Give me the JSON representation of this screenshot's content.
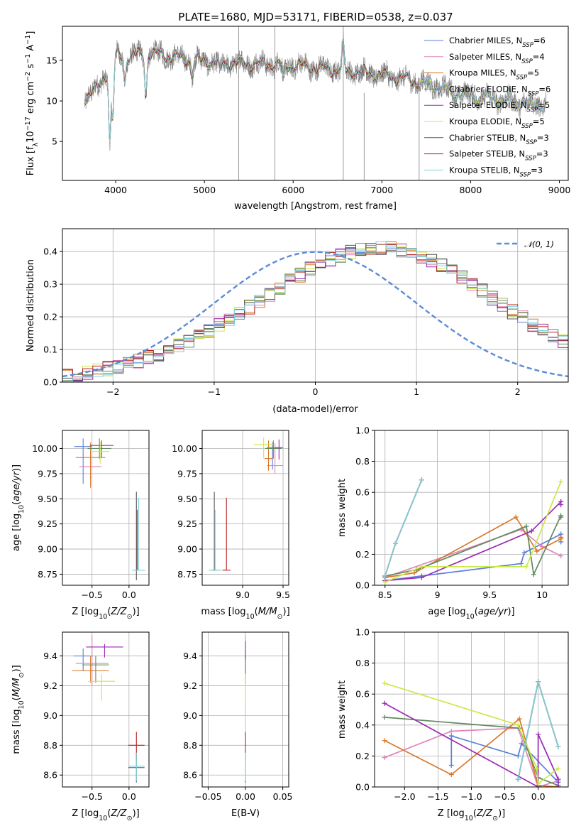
{
  "figure": {
    "title": "PLATE=1680, MJD=53171, FIBERID=0538, z=0.037"
  },
  "palette": {
    "chabrier_miles": "#5b7fd8",
    "salpeter_miles": "#e085b8",
    "kroupa_miles": "#d9792a",
    "chabrier_elodie": "#5f8a5f",
    "salpeter_elodie": "#9b2ab5",
    "kroupa_elodie": "#cbe84a",
    "chabrier_stelib": "#555555",
    "salpeter_stelib": "#b52020",
    "kroupa_stelib": "#7fd3dc",
    "data": "#808080",
    "normal": "#5b8bd6",
    "grid": "#b0b0b0"
  },
  "legend_spectrum": [
    "Chabrier MILES, N_SSP=6",
    "Salpeter MILES, N_SSP=4",
    "Kroupa MILES, N_SSP=5",
    "Chabrier ELODIE, N_SSP=6",
    "Salpeter ELODIE, N_SSP=5",
    "Kroupa ELODIE, N_SSP=5",
    "Chabrier STELIB, N_SSP=3",
    "Salpeter STELIB, N_SSP=3",
    "Kroupa STELIB, N_SSP=3"
  ],
  "legend_hist": "𝒩(0, 1)",
  "chart_data": [
    {
      "id": "spectrum",
      "type": "line",
      "xlabel": "wavelength [Angstrom, rest frame]",
      "ylabel": "Flux [f_λ 10^-17 erg cm^-2 s^-1 A^-1]",
      "xlim": [
        3400,
        9100
      ],
      "ylim": [
        0.2,
        19.2
      ],
      "xticks": [
        4000,
        5000,
        6000,
        7000,
        8000,
        9000
      ],
      "yticks": [
        5,
        10,
        15
      ],
      "data_range": [
        3650,
        8850
      ],
      "continuum": {
        "x": [
          3650,
          3800,
          3950,
          4000,
          4100,
          4250,
          4400,
          4600,
          4900,
          5200,
          5500,
          5800,
          6100,
          6400,
          6700,
          7000,
          7300,
          7600,
          7900,
          8200,
          8500,
          8850
        ],
        "y": [
          10.5,
          11.5,
          14.5,
          15.6,
          15.4,
          15.7,
          15.9,
          15.5,
          15.0,
          14.7,
          14.6,
          14.5,
          14.3,
          13.9,
          13.6,
          13.2,
          12.6,
          11.8,
          10.8,
          10.3,
          9.9,
          9.5
        ]
      },
      "model_ranges": [
        [
          3650,
          8850
        ],
        [
          3650,
          8850
        ],
        [
          3650,
          7420
        ],
        [
          3650,
          8850
        ],
        [
          3650,
          8850
        ],
        [
          3650,
          8850
        ],
        [
          3650,
          7420
        ],
        [
          3650,
          7420
        ],
        [
          3650,
          8850
        ]
      ]
    },
    {
      "id": "residual_histogram",
      "type": "histogram",
      "xlabel": "(data-model)/error",
      "ylabel": "Normed distribution",
      "xlim": [
        -2.5,
        2.5
      ],
      "ylim": [
        0,
        0.47
      ],
      "xticks": [
        -2,
        -1,
        0,
        1,
        2
      ],
      "yticks": [
        0.0,
        0.1,
        0.2,
        0.3,
        0.4
      ],
      "bin_width": 0.1,
      "bin_start": -2.5,
      "bins_reference": [
        0.017,
        0.023,
        0.028,
        0.034,
        0.041,
        0.048,
        0.056,
        0.065,
        0.075,
        0.086,
        0.099,
        0.112,
        0.126,
        0.141,
        0.157,
        0.174,
        0.192,
        0.211,
        0.23,
        0.25,
        0.27,
        0.29,
        0.309,
        0.328,
        0.346,
        0.362,
        0.376,
        0.389,
        0.398,
        0.405,
        0.41,
        0.411,
        0.409,
        0.404,
        0.396,
        0.385,
        0.371,
        0.356,
        0.338,
        0.319,
        0.299,
        0.279,
        0.258,
        0.237,
        0.216,
        0.196,
        0.176,
        0.157,
        0.14,
        0.123,
        0.108
      ]
    },
    {
      "id": "age_vs_z",
      "type": "scatter",
      "xlabel": "Z [log10(Z/Z☉)]",
      "ylabel": "age [log10(age/yr)]",
      "xlim": [
        -0.9,
        0.27
      ],
      "ylim": [
        8.64,
        10.18
      ],
      "xticks": [
        -0.5,
        0.0
      ],
      "xtick_labels": [
        "−0.5",
        "0.0"
      ],
      "yticks": [
        8.75,
        9.0,
        9.25,
        9.5,
        9.75,
        10.0
      ],
      "ytick_labels": [
        "8.75",
        "9.00",
        "9.25",
        "9.50",
        "9.75",
        "10.00"
      ],
      "points": [
        {
          "x": -0.62,
          "y": 10.02,
          "xerr": 0.12,
          "yerr_lo": 0.37,
          "yerr_hi": 0.08
        },
        {
          "x": -0.52,
          "y": 9.82,
          "xerr": 0.15,
          "yerr_lo": 0.12,
          "yerr_hi": 0.18
        },
        {
          "x": -0.52,
          "y": 9.91,
          "xerr": 0.2,
          "yerr_lo": 0.3,
          "yerr_hi": 0.15
        },
        {
          "x": -0.4,
          "y": 10.0,
          "xerr": 0.16,
          "yerr_lo": 0.1,
          "yerr_hi": 0.1
        },
        {
          "x": -0.37,
          "y": 10.03,
          "xerr": 0.16,
          "yerr_lo": 0.12,
          "yerr_hi": 0.05
        },
        {
          "x": -0.39,
          "y": 9.97,
          "xerr": 0.12,
          "yerr_lo": 0.12,
          "yerr_hi": 0.1
        },
        {
          "x": 0.1,
          "y": 8.79,
          "xerr": 0.0,
          "yerr_lo": 0.1,
          "yerr_hi": 0.78
        },
        {
          "x": 0.11,
          "y": 8.79,
          "xerr": 0.0,
          "yerr_lo": 0.0,
          "yerr_hi": 0.6
        },
        {
          "x": 0.13,
          "y": 8.79,
          "xerr": 0.09,
          "yerr_lo": 0.0,
          "yerr_hi": 0.72
        }
      ]
    },
    {
      "id": "age_vs_mass",
      "type": "scatter",
      "xlabel": "mass [log10(M/M☉)]",
      "ylabel": "",
      "xlim": [
        8.5,
        9.57
      ],
      "ylim": [
        8.64,
        10.18
      ],
      "xticks": [
        9.0,
        9.5
      ],
      "xtick_labels": [
        "9.0",
        "9.5"
      ],
      "yticks": [
        8.75,
        9.0,
        9.25,
        9.5,
        9.75,
        10.0
      ],
      "ytick_labels": [
        "8.75",
        "9.00",
        "9.25",
        "9.50",
        "9.75",
        "10.00"
      ],
      "points": [
        {
          "x": 9.37,
          "y": 10.01,
          "xerr": 0.07,
          "yerr_lo": 0.22,
          "yerr_hi": 0.05
        },
        {
          "x": 9.4,
          "y": 9.83,
          "xerr": 0.1,
          "yerr_lo": 0.08,
          "yerr_hi": 0.22
        },
        {
          "x": 9.32,
          "y": 9.9,
          "xerr": 0.05,
          "yerr_lo": 0.12,
          "yerr_hi": 0.18
        },
        {
          "x": 9.38,
          "y": 10.0,
          "xerr": 0.1,
          "yerr_lo": 0.1,
          "yerr_hi": 0.08
        },
        {
          "x": 9.45,
          "y": 10.01,
          "xerr": 0.05,
          "yerr_lo": 0.12,
          "yerr_hi": 0.08
        },
        {
          "x": 9.26,
          "y": 10.04,
          "xerr": 0.12,
          "yerr_lo": 0.14,
          "yerr_hi": 0.07
        },
        {
          "x": 8.65,
          "y": 8.79,
          "xerr": 0.03,
          "yerr_lo": 0.0,
          "yerr_hi": 0.78
        },
        {
          "x": 8.8,
          "y": 8.79,
          "xerr": 0.05,
          "yerr_lo": 0.0,
          "yerr_hi": 0.72
        },
        {
          "x": 8.66,
          "y": 8.79,
          "xerr": 0.08,
          "yerr_lo": 0.0,
          "yerr_hi": 0.6
        }
      ]
    },
    {
      "id": "mass_weight_vs_age",
      "type": "line",
      "xlabel": "age [log10(age/yr)]",
      "ylabel": "mass weight",
      "xlim": [
        8.4,
        10.25
      ],
      "ylim": [
        0,
        1.0
      ],
      "xticks": [
        8.5,
        9.0,
        9.5,
        10.0
      ],
      "yticks": [
        0.0,
        0.2,
        0.4,
        0.6,
        0.8,
        1.0
      ],
      "series": [
        {
          "x": [
            8.5,
            8.85,
            9.8,
            9.83,
            10.18,
            10.18
          ],
          "y": [
            0.03,
            0.06,
            0.14,
            0.21,
            0.33,
            0.28
          ]
        },
        {
          "x": [
            8.5,
            9.8,
            10.0,
            10.18
          ],
          "y": [
            0.05,
            0.36,
            0.25,
            0.19
          ]
        },
        {
          "x": [
            8.5,
            8.78,
            9.75,
            9.95,
            10.18,
            10.18
          ],
          "y": [
            0.05,
            0.08,
            0.44,
            0.22,
            0.3,
            0.31
          ]
        },
        {
          "x": [
            8.5,
            8.8,
            9.85,
            9.92,
            10.18,
            10.18
          ],
          "y": [
            0.06,
            0.1,
            0.38,
            0.07,
            0.45,
            0.44
          ]
        },
        {
          "x": [
            8.5,
            8.85,
            9.9,
            10.18,
            10.18
          ],
          "y": [
            0.03,
            0.05,
            0.35,
            0.54,
            0.52
          ]
        },
        {
          "x": [
            8.5,
            8.85,
            9.85,
            10.18
          ],
          "y": [
            0.02,
            0.12,
            0.12,
            0.67
          ]
        },
        {
          "x": [
            8.5,
            8.6,
            8.85
          ],
          "y": [
            0.06,
            0.27,
            0.68
          ]
        },
        {
          "x": [
            8.5,
            8.6,
            8.85
          ],
          "y": [
            0.06,
            0.27,
            0.68
          ]
        },
        {
          "x": [
            8.5,
            8.6,
            8.85
          ],
          "y": [
            0.06,
            0.27,
            0.68
          ]
        }
      ]
    },
    {
      "id": "mass_vs_z",
      "type": "scatter",
      "xlabel": "Z [log10(Z/Z☉)]",
      "ylabel": "mass [log10(M/M☉)]",
      "xlim": [
        -0.9,
        0.27
      ],
      "ylim": [
        8.52,
        9.56
      ],
      "xticks": [
        -0.5,
        0.0
      ],
      "xtick_labels": [
        "−0.5",
        "0.0"
      ],
      "yticks": [
        8.6,
        8.8,
        9.0,
        9.2,
        9.4
      ],
      "ytick_labels": [
        "8.6",
        "8.8",
        "9.0",
        "9.2",
        "9.4"
      ],
      "points": [
        {
          "x": -0.62,
          "y": 9.4,
          "xerr": 0.13,
          "yerr_lo": 0.1,
          "yerr_hi": 0.05
        },
        {
          "x": -0.5,
          "y": 9.35,
          "xerr": 0.22,
          "yerr_lo": 0.15,
          "yerr_hi": 0.19
        },
        {
          "x": -0.52,
          "y": 9.3,
          "xerr": 0.25,
          "yerr_lo": 0.08,
          "yerr_hi": 0.1
        },
        {
          "x": -0.45,
          "y": 9.34,
          "xerr": 0.18,
          "yerr_lo": 0.12,
          "yerr_hi": 0.06
        },
        {
          "x": -0.33,
          "y": 9.46,
          "xerr": 0.25,
          "yerr_lo": 0.07,
          "yerr_hi": 0.02
        },
        {
          "x": -0.37,
          "y": 9.23,
          "xerr": 0.18,
          "yerr_lo": 0.13,
          "yerr_hi": 0.05
        },
        {
          "x": 0.1,
          "y": 8.65,
          "xerr": 0.11,
          "yerr_lo": 0.1,
          "yerr_hi": 0.09
        },
        {
          "x": 0.1,
          "y": 8.8,
          "xerr": 0.11,
          "yerr_lo": 0.1,
          "yerr_hi": 0.09
        },
        {
          "x": 0.1,
          "y": 8.66,
          "xerr": 0.11,
          "yerr_lo": 0.1,
          "yerr_hi": 0.09
        }
      ]
    },
    {
      "id": "mass_vs_ebv",
      "type": "scatter",
      "xlabel": "E(B-V)",
      "ylabel": "",
      "xlim": [
        -0.058,
        0.058
      ],
      "ylim": [
        8.52,
        9.56
      ],
      "xticks": [
        -0.05,
        0.0,
        0.05
      ],
      "xtick_labels": [
        "−0.05",
        "0.00",
        "0.05"
      ],
      "yticks": [
        8.6,
        8.8,
        9.0,
        9.2,
        9.4
      ],
      "ytick_labels": [
        "8.6",
        "8.8",
        "9.0",
        "9.2",
        "9.4"
      ],
      "points": [
        {
          "x": 0.0,
          "y": 9.4,
          "xerr": 0.0,
          "yerr_lo": 0.04,
          "yerr_hi": 0.05
        },
        {
          "x": 0.0,
          "y": 9.35,
          "xerr": 0.0,
          "yerr_lo": 0.15,
          "yerr_hi": 0.19
        },
        {
          "x": 0.0,
          "y": 9.3,
          "xerr": 0.0,
          "yerr_lo": 0.08,
          "yerr_hi": 0.1
        },
        {
          "x": 0.0,
          "y": 9.34,
          "xerr": 0.0,
          "yerr_lo": 0.12,
          "yerr_hi": 0.06
        },
        {
          "x": 0.0,
          "y": 9.46,
          "xerr": 0.0,
          "yerr_lo": 0.08,
          "yerr_hi": 0.04
        },
        {
          "x": 0.0,
          "y": 9.23,
          "xerr": 0.0,
          "yerr_lo": 0.13,
          "yerr_hi": 0.05
        },
        {
          "x": 0.0,
          "y": 8.65,
          "xerr": 0.0,
          "yerr_lo": 0.1,
          "yerr_hi": 0.09
        },
        {
          "x": 0.0,
          "y": 8.8,
          "xerr": 0.0,
          "yerr_lo": 0.1,
          "yerr_hi": 0.09
        },
        {
          "x": 0.0,
          "y": 8.66,
          "xerr": 0.0,
          "yerr_lo": 0.1,
          "yerr_hi": 0.09
        }
      ]
    },
    {
      "id": "mass_weight_vs_z",
      "type": "line",
      "xlabel": "Z [log10(Z/Z☉)]",
      "ylabel": "mass weight",
      "xlim": [
        -2.45,
        0.45
      ],
      "ylim": [
        0,
        1.0
      ],
      "xticks": [
        -2.0,
        -1.5,
        -1.0,
        -0.5,
        0.0
      ],
      "xtick_labels": [
        "−2.0",
        "−1.5",
        "−1.0",
        "−0.5",
        "0.0"
      ],
      "yticks": [
        0.0,
        0.2,
        0.4,
        0.6,
        0.8,
        1.0
      ],
      "series": [
        {
          "x": [
            -1.3,
            -1.3,
            -0.3,
            -0.25,
            0.3
          ],
          "y": [
            0.14,
            0.33,
            0.2,
            0.28,
            0.03
          ]
        },
        {
          "x": [
            -2.3,
            -1.3,
            -0.3,
            0.0,
            0.3
          ],
          "y": [
            0.19,
            0.36,
            0.38,
            0.0,
            0.04
          ]
        },
        {
          "x": [
            -2.3,
            -1.3,
            -0.28,
            0.0,
            0.3
          ],
          "y": [
            0.3,
            0.08,
            0.44,
            0.01,
            0.0
          ]
        },
        {
          "x": [
            -2.3,
            -0.28,
            0.0,
            0.3
          ],
          "y": [
            0.45,
            0.38,
            0.06,
            0.01
          ]
        },
        {
          "x": [
            -2.3,
            0.0,
            0.0,
            0.3,
            0.3
          ],
          "y": [
            0.54,
            0.0,
            0.34,
            0.05,
            0.0
          ]
        },
        {
          "x": [
            -2.3,
            -0.3,
            -0.02,
            0.0,
            0.3
          ],
          "y": [
            0.67,
            0.4,
            0.12,
            0.02,
            0.12
          ]
        },
        {
          "x": [
            -0.3,
            0.0,
            0.3
          ],
          "y": [
            0.05,
            0.68,
            0.26
          ]
        },
        {
          "x": [
            -0.3,
            0.0,
            0.3
          ],
          "y": [
            0.05,
            0.68,
            0.26
          ]
        },
        {
          "x": [
            -0.3,
            0.0,
            0.3
          ],
          "y": [
            0.05,
            0.68,
            0.26
          ]
        }
      ]
    }
  ]
}
